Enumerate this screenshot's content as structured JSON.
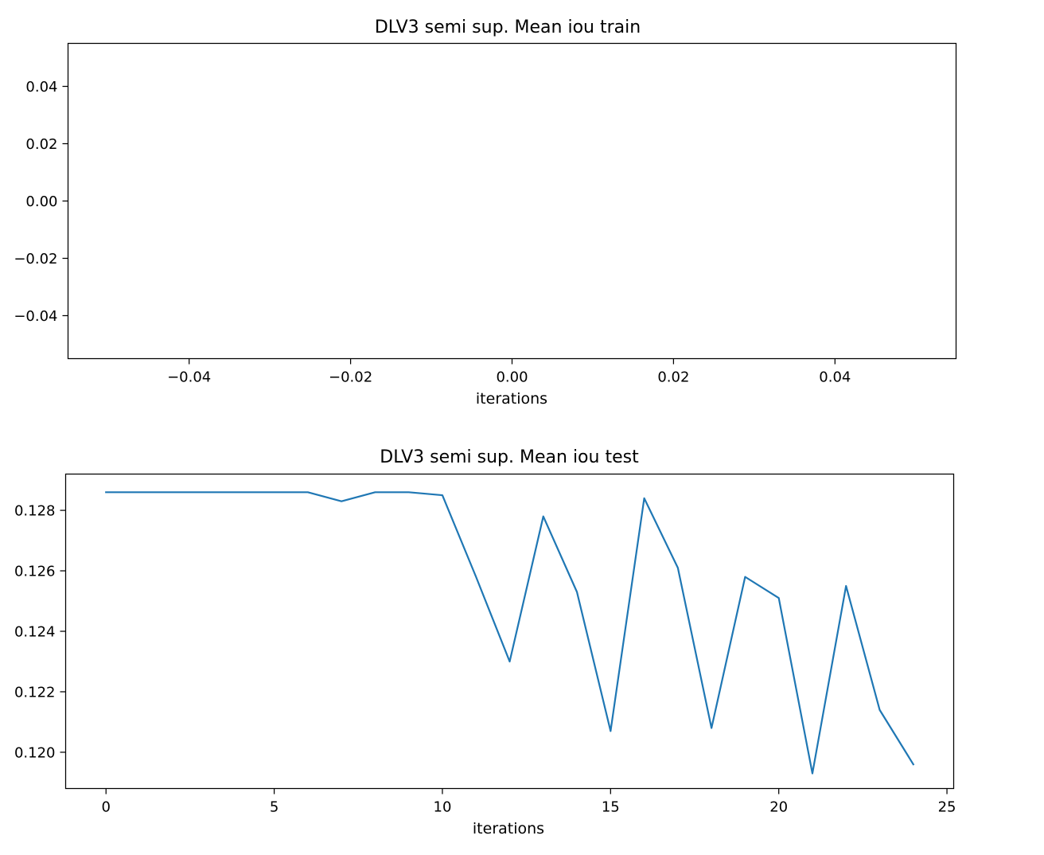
{
  "chart_data": [
    {
      "type": "line",
      "title": "DLV3 semi sup. Mean iou train",
      "xlabel": "iterations",
      "ylabel": "",
      "xlim": [
        -0.055,
        0.055
      ],
      "ylim": [
        -0.055,
        0.055
      ],
      "xticks": [
        -0.04,
        -0.02,
        0.0,
        0.02,
        0.04
      ],
      "xtick_labels": [
        "−0.04",
        "−0.02",
        "0.00",
        "0.02",
        "0.04"
      ],
      "yticks": [
        0.04,
        0.02,
        0.0,
        -0.02,
        -0.04
      ],
      "ytick_labels": [
        "0.04",
        "0.02",
        "0.00",
        "−0.02",
        "−0.04"
      ],
      "grid": false,
      "series": [
        {
          "x": [],
          "y": [],
          "color": "#1f77b4"
        }
      ]
    },
    {
      "type": "line",
      "title": "DLV3 semi sup. Mean iou test",
      "xlabel": "iterations",
      "ylabel": "",
      "xlim": [
        -1.2,
        25.2
      ],
      "ylim": [
        0.1188,
        0.1292
      ],
      "xticks": [
        0,
        5,
        10,
        15,
        20,
        25
      ],
      "xtick_labels": [
        "0",
        "5",
        "10",
        "15",
        "20",
        "25"
      ],
      "yticks": [
        0.128,
        0.126,
        0.124,
        0.122,
        0.12
      ],
      "ytick_labels": [
        "0.128",
        "0.126",
        "0.124",
        "0.122",
        "0.120"
      ],
      "grid": false,
      "series": [
        {
          "x": [
            0,
            1,
            2,
            3,
            4,
            5,
            6,
            7,
            8,
            9,
            10,
            11,
            12,
            13,
            14,
            15,
            16,
            17,
            18,
            19,
            20,
            21,
            22,
            23,
            24
          ],
          "y": [
            0.1286,
            0.1286,
            0.1286,
            0.1286,
            0.1286,
            0.1286,
            0.1286,
            0.1283,
            0.1286,
            0.1286,
            0.1285,
            0.1258,
            0.123,
            0.1278,
            0.1253,
            0.1207,
            0.1284,
            0.1261,
            0.1208,
            0.1258,
            0.1251,
            0.1193,
            0.1255,
            0.1214,
            0.1196
          ],
          "color": "#1f77b4"
        }
      ]
    }
  ]
}
